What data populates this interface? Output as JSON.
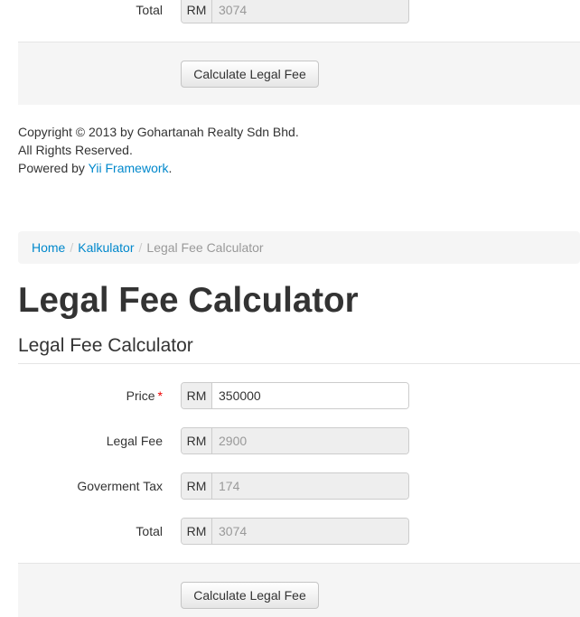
{
  "top_form": {
    "total_label": "Total",
    "currency": "RM",
    "total_value": "3074",
    "submit_label": "Calculate Legal Fee"
  },
  "footer": {
    "copyright": "Copyright © 2013 by Gohartanah Realty Sdn Bhd.",
    "rights": "All Rights Reserved.",
    "powered_prefix": "Powered by ",
    "powered_link": "Yii Framework",
    "powered_suffix": "."
  },
  "breadcrumb": {
    "items": [
      "Home",
      "Kalkulator"
    ],
    "separator": "/",
    "current": "Legal Fee Calculator"
  },
  "page": {
    "title": "Legal Fee Calculator",
    "legend": "Legal Fee Calculator"
  },
  "form": {
    "currency": "RM",
    "required_marker": "*",
    "fields": [
      {
        "label": "Price",
        "value": "350000"
      },
      {
        "label": "Legal Fee",
        "value": "2900"
      },
      {
        "label": "Goverment Tax",
        "value": "174"
      },
      {
        "label": "Total",
        "value": "3074"
      }
    ],
    "submit_label": "Calculate Legal Fee"
  },
  "colors": {
    "link": "#0088cc",
    "required": "#ee0000"
  }
}
